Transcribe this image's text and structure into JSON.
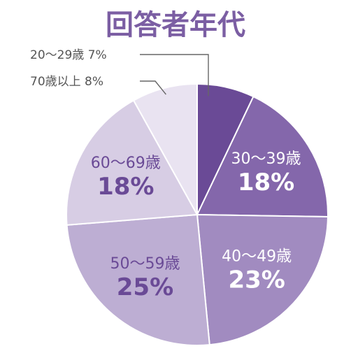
{
  "chart_data": {
    "type": "pie",
    "title": "回答者年代",
    "slices": [
      {
        "label": "20～29歳",
        "value": 7,
        "display": "7%",
        "color": "#6a4a96"
      },
      {
        "label": "30～39歳",
        "value": 18,
        "display": "18%",
        "color": "#8467ab"
      },
      {
        "label": "40～49歳",
        "value": 23,
        "display": "23%",
        "color": "#a18bc0"
      },
      {
        "label": "50～59歳",
        "value": 25,
        "display": "25%",
        "color": "#bdaed3"
      },
      {
        "label": "60～69歳",
        "value": 18,
        "display": "18%",
        "color": "#d7cde4"
      },
      {
        "label": "70歳以上",
        "value": 8,
        "display": "8%",
        "color": "#e9e3f1"
      }
    ]
  }
}
